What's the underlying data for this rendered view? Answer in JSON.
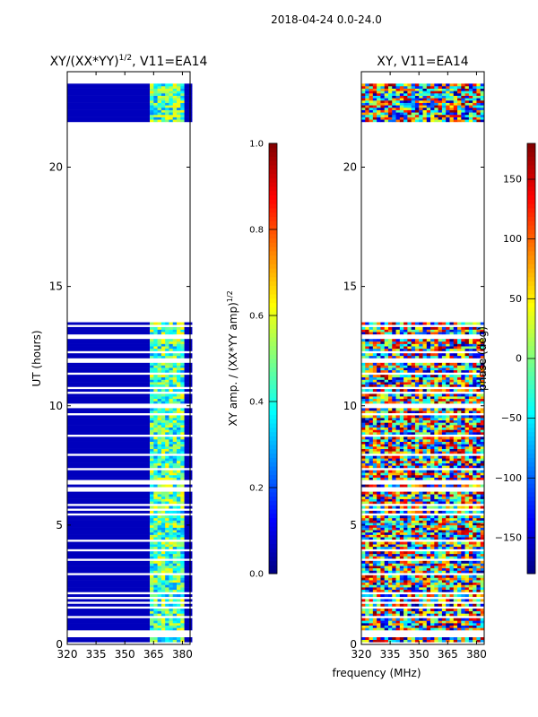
{
  "chart_data": [
    {
      "type": "heatmap",
      "suptitle": "2018-04-24 0.0-24.0",
      "title": "XY/(XX*YY)",
      "title_sup": "1/2",
      "title_suffix": ", V11=EA14",
      "xlabel": "",
      "ylabel": "UT (hours)",
      "xlim": [
        320,
        384
      ],
      "ylim": [
        0,
        24
      ],
      "xticks": [
        320,
        335,
        350,
        365,
        380
      ],
      "yticks": [
        0,
        5,
        10,
        15,
        20
      ],
      "colorbar": {
        "label": "XY amp. / (XX*YY amp)",
        "label_sup": "1/2",
        "range": [
          0,
          1
        ],
        "ticks": [
          "0.0",
          "0.2",
          "0.4",
          "0.6",
          "0.8",
          "1.0"
        ],
        "tick_values": [
          0,
          0.2,
          0.4,
          0.6,
          0.8,
          1.0
        ],
        "colormap": "jet"
      },
      "data_ut_ranges": [
        [
          0,
          13.5
        ],
        [
          21.9,
          23.5
        ]
      ],
      "notes": "low amplitude (~0.05) below 363 MHz, ~0.3-0.6 between 363 and 380 MHz"
    },
    {
      "type": "heatmap",
      "title": "XY, V11=EA14",
      "xlabel": "frequency (MHz)",
      "ylabel": "",
      "xlim": [
        320,
        384
      ],
      "ylim": [
        0,
        24
      ],
      "xticks": [
        320,
        335,
        350,
        365,
        380
      ],
      "yticks": [
        0,
        5,
        10,
        15,
        20
      ],
      "colorbar": {
        "label": "phase (deg)",
        "range": [
          -180,
          180
        ],
        "ticks": [
          "−150",
          "−100",
          "−50",
          "0",
          "50",
          "100",
          "150"
        ],
        "tick_values": [
          -150,
          -100,
          -50,
          0,
          50,
          100,
          150
        ],
        "colormap": "jet"
      },
      "data_ut_ranges": [
        [
          0,
          13.5
        ],
        [
          21.9,
          23.5
        ]
      ]
    }
  ]
}
